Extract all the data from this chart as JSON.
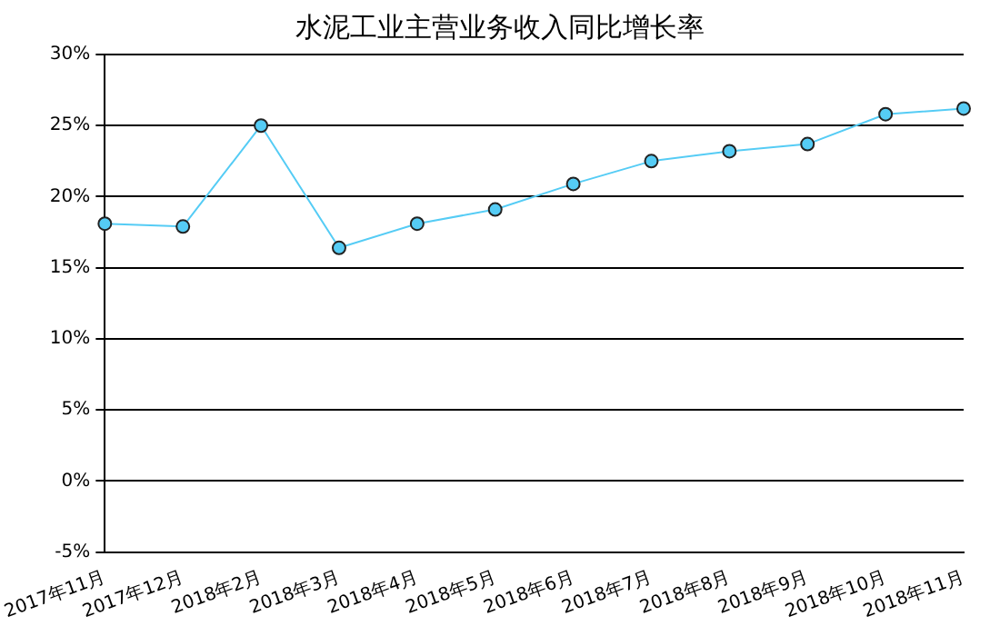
{
  "chart_data": {
    "type": "line",
    "title": "水泥工业主营业务收入同比增长率",
    "categories": [
      "2017年11月",
      "2017年12月",
      "2018年2月",
      "2018年3月",
      "2018年4月",
      "2018年5月",
      "2018年6月",
      "2018年7月",
      "2018年8月",
      "2018年9月",
      "2018年10月",
      "2018年11月"
    ],
    "series": [
      {
        "color": "#55ccf5",
        "values": [
          18.1,
          17.9,
          25.0,
          16.4,
          18.1,
          19.1,
          20.9,
          22.5,
          23.2,
          23.7,
          25.8,
          26.2
        ]
      }
    ],
    "ylim": [
      -5,
      30
    ],
    "yticks": [
      {
        "value": -5,
        "label": "-5%"
      },
      {
        "value": 0,
        "label": "0%"
      },
      {
        "value": 5,
        "label": "5%"
      },
      {
        "value": 10,
        "label": "10%"
      },
      {
        "value": 15,
        "label": "15%"
      },
      {
        "value": 20,
        "label": "20%"
      },
      {
        "value": 25,
        "label": "25%"
      },
      {
        "value": 30,
        "label": "30%"
      }
    ],
    "grid": "y",
    "marker": "circle",
    "line_style": "solid",
    "legend": false
  }
}
